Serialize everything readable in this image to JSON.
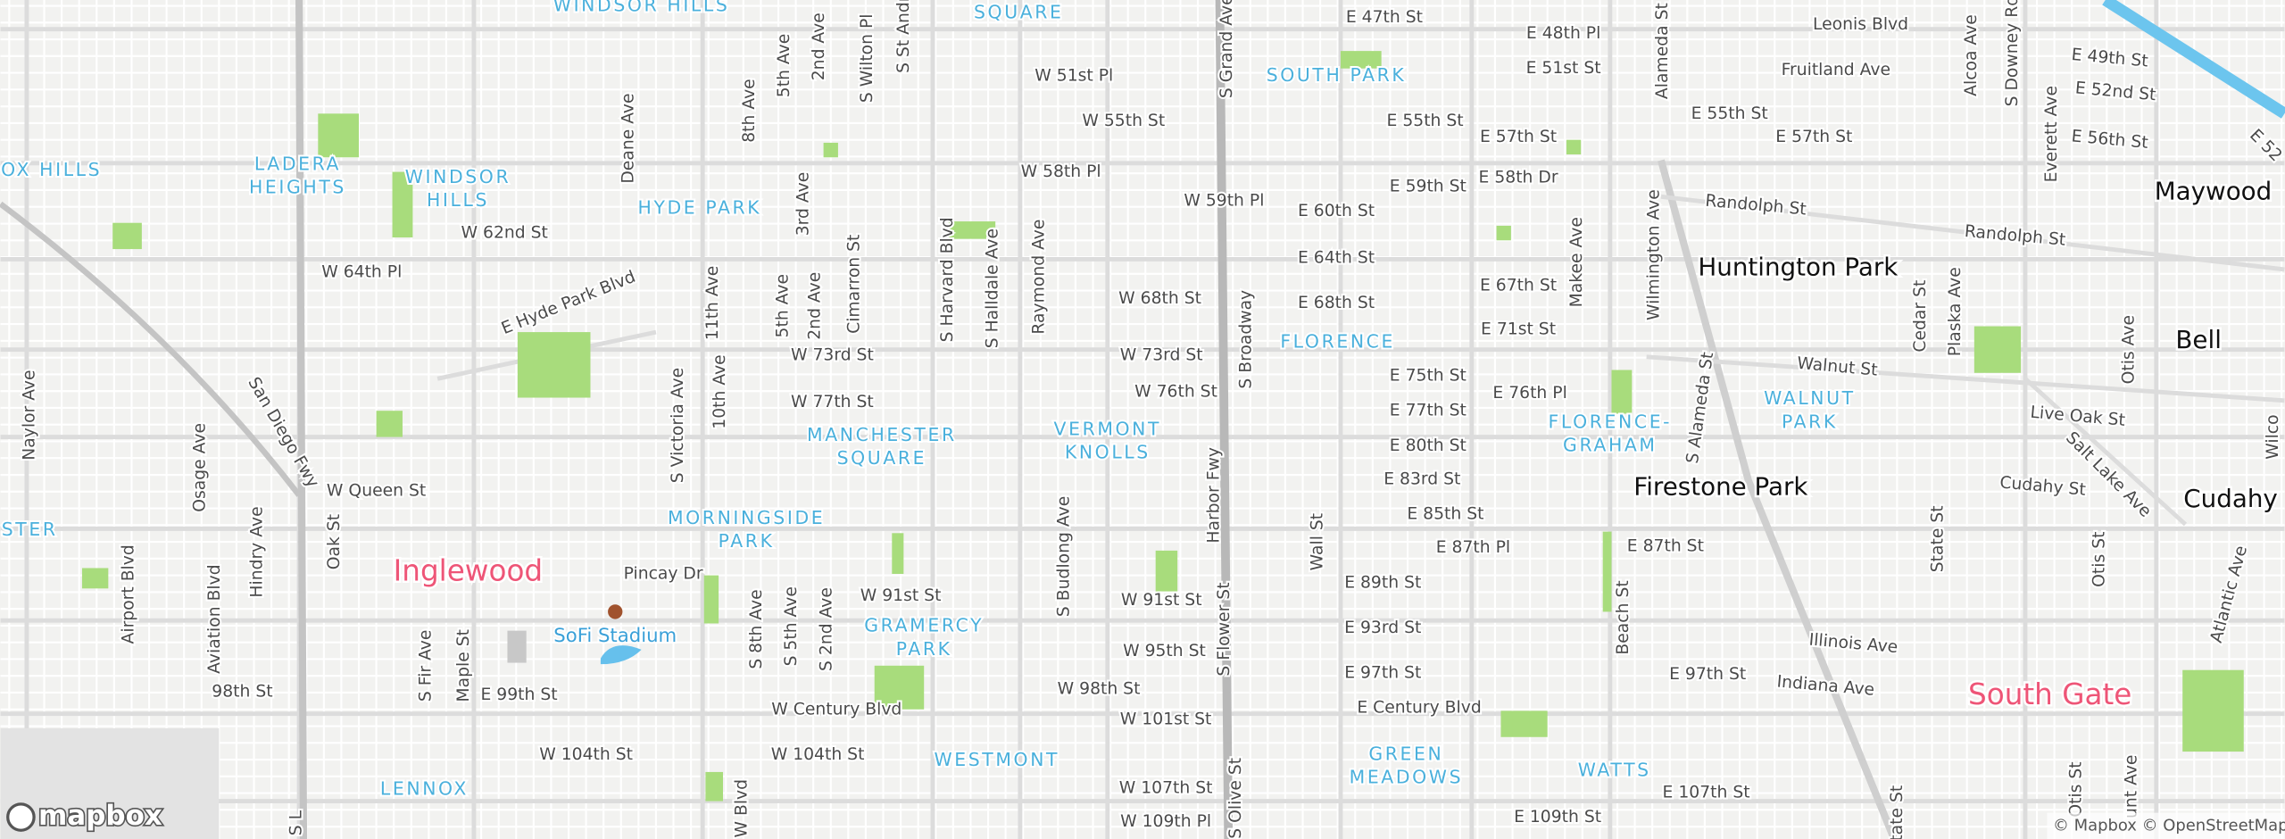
{
  "map": {
    "neighborhoods": [
      {
        "lines": [
          "WINDSOR HILLS"
        ]
      },
      {
        "lines": [
          "SQUARE"
        ]
      },
      {
        "lines": [
          "SOUTH PARK"
        ]
      },
      {
        "lines": [
          "LADERA",
          "HEIGHTS"
        ]
      },
      {
        "lines": [
          "OX HILLS"
        ]
      },
      {
        "lines": [
          "WINDSOR",
          "HILLS"
        ]
      },
      {
        "lines": [
          "HYDE PARK"
        ]
      },
      {
        "lines": [
          "FLORENCE"
        ]
      },
      {
        "lines": [
          "MANCHESTER",
          "SQUARE"
        ]
      },
      {
        "lines": [
          "VERMONT",
          "KNOLLS"
        ]
      },
      {
        "lines": [
          "FLORENCE-",
          "GRAHAM"
        ]
      },
      {
        "lines": [
          "WALNUT",
          "PARK"
        ]
      },
      {
        "lines": [
          "STER"
        ]
      },
      {
        "lines": [
          "MORNINGSIDE",
          "PARK"
        ]
      },
      {
        "lines": [
          "GRAMERCY",
          "PARK"
        ]
      },
      {
        "lines": [
          "WESTMONT"
        ]
      },
      {
        "lines": [
          "LENNOX"
        ]
      },
      {
        "lines": [
          "GREEN",
          "MEADOWS"
        ]
      },
      {
        "lines": [
          "WATTS"
        ]
      }
    ],
    "cities": [
      "Maywood",
      "Huntington Park",
      "Bell",
      "Cudahy",
      "Firestone Park"
    ],
    "highlighted_cities": [
      "Inglewood",
      "South Gate"
    ],
    "poi": "SoFi Stadium",
    "streets": [
      "W 51st Pl",
      "W 55th St",
      "W 58th Pl",
      "W 59th Pl",
      "E 47th St",
      "E 48th Pl",
      "E 51st St",
      "E 55th St",
      "E 57th St",
      "E 59th St",
      "E 58th Dr",
      "E 60th St",
      "E 64th St",
      "E 68th St",
      "W 68th St",
      "E 67th St",
      "E 71st St",
      "W 73rd St",
      "W 73rd St",
      "W 77th St",
      "W 76th St",
      "E 75th St",
      "E 77th St",
      "E 76th Pl",
      "E 80th St",
      "E 83rd St",
      "E 85th St",
      "E 87th Pl",
      "E 87th St",
      "E 89th St",
      "E 93rd St",
      "E 97th St",
      "E 97th St",
      "E Century Blvd",
      "W 91st St",
      "W 91st St",
      "W 95th St",
      "W 98th St",
      "W 101st St",
      "W Century Blvd",
      "W 104th St",
      "W 104th St",
      "W 107th St",
      "W 109th Pl",
      "E 109th St",
      "E 107th St",
      "W Queen St",
      "Pincay Dr",
      "W 62nd St",
      "W 64th Pl",
      "E 99th St",
      "98th St",
      "Leonis Blvd",
      "Fruitland Ave",
      "E 55th St",
      "E 57th St",
      "E 49th St",
      "E 52nd St",
      "E 56th St",
      "Randolph St",
      "Randolph St",
      "Walnut St",
      "Live Oak St",
      "Cudahy St",
      "Illinois Ave",
      "Indiana Ave",
      "E Hyde Park Blvd",
      "San Diego Fwy",
      "Salt Lake Ave",
      "E 52",
      "Deane Ave",
      "8th Ave",
      "5th Ave",
      "2nd Ave",
      "S Wilton Pl",
      "S St Andre",
      "3rd Ave",
      "11th Ave",
      "5th Ave",
      "2nd Ave",
      "Cimarron St",
      "S Harvard Blvd",
      "S Halldale Ave",
      "Raymond Ave",
      "S Grand Ave",
      "S Broadway",
      "10th Ave",
      "S Victoria Ave",
      "Harbor Fwy",
      "S Budlong Ave",
      "Wall St",
      "S Flower St",
      "S Olive St",
      "S 8th Ave",
      "S 5th Ave",
      "S 2nd Ave",
      "S Fir Ave",
      "Maple St",
      "Oak St",
      "Hindry Ave",
      "Aviation Blvd",
      "Airport Blvd",
      "Osage Ave",
      "Naylor Ave",
      "S L",
      "Alameda St",
      "Alcoa Ave",
      "S Downey Rd",
      "Everett Ave",
      "Wilmington Ave",
      "Makee Ave",
      "S Alameda St",
      "Cedar St",
      "Plaska Ave",
      "Otis Ave",
      "Beach St",
      "State St",
      "Otis St",
      "Atlantic Ave",
      "Otis St",
      "unt Ave",
      "State St",
      "Wilco",
      "W Blvd"
    ],
    "logo": "mapbox",
    "attribution": "© Mapbox © OpenStreetMap"
  }
}
